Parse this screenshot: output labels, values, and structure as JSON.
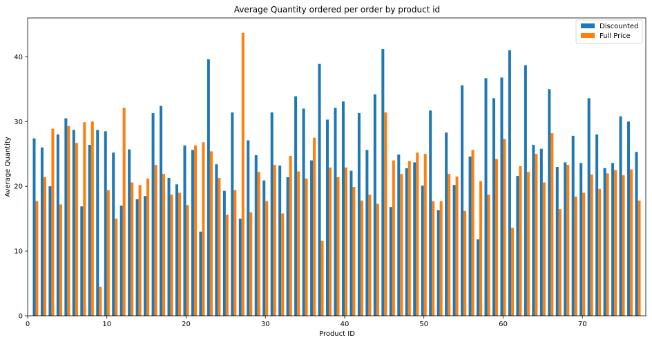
{
  "chart_data": {
    "type": "bar",
    "title": "Average Quantity ordered per order by product id",
    "xlabel": "Product ID",
    "ylabel": "Average Quantity",
    "xlim": [
      0,
      78
    ],
    "ylim": [
      0,
      46
    ],
    "xticks": [
      0,
      10,
      20,
      30,
      40,
      50,
      60,
      70
    ],
    "yticks": [
      0,
      10,
      20,
      30,
      40
    ],
    "grid": false,
    "legend_position": "top-right",
    "x": [
      1,
      2,
      3,
      4,
      5,
      6,
      7,
      8,
      9,
      10,
      11,
      12,
      13,
      14,
      15,
      16,
      17,
      18,
      19,
      20,
      21,
      22,
      23,
      24,
      25,
      26,
      27,
      28,
      29,
      30,
      31,
      32,
      33,
      34,
      35,
      36,
      37,
      38,
      39,
      40,
      41,
      42,
      43,
      44,
      45,
      46,
      47,
      48,
      49,
      50,
      51,
      52,
      53,
      54,
      55,
      56,
      57,
      58,
      59,
      60,
      61,
      62,
      63,
      64,
      65,
      66,
      67,
      68,
      69,
      70,
      71,
      72,
      73,
      74,
      75,
      76,
      77
    ],
    "series": [
      {
        "name": "Discounted",
        "color": "#1f77b4",
        "values": [
          27.4,
          26.0,
          20.0,
          28.0,
          30.5,
          28.7,
          16.9,
          26.4,
          28.7,
          28.5,
          25.2,
          17.0,
          25.7,
          18.0,
          18.5,
          31.3,
          32.4,
          21.3,
          20.3,
          26.3,
          25.6,
          13.0,
          39.6,
          23.4,
          19.3,
          31.4,
          15.0,
          27.1,
          24.8,
          20.9,
          31.4,
          23.2,
          21.4,
          33.9,
          32.0,
          24.0,
          38.9,
          30.3,
          32.1,
          33.1,
          22.4,
          31.3,
          25.6,
          34.2,
          41.2,
          16.8,
          24.9,
          22.8,
          23.7,
          20.1,
          31.7,
          16.3,
          28.3,
          20.2,
          35.6,
          24.6,
          11.8,
          36.7,
          33.6,
          36.8,
          41.0,
          21.6,
          38.7,
          26.4,
          25.8,
          35.0,
          23.0,
          23.7,
          27.8,
          23.6,
          33.6,
          28.0,
          22.8,
          23.6,
          30.8,
          30.0,
          25.3
        ]
      },
      {
        "name": "Full Price",
        "color": "#ff7f0e",
        "values": [
          17.7,
          21.4,
          28.9,
          17.2,
          29.3,
          26.7,
          29.9,
          30.0,
          4.5,
          19.4,
          15.0,
          32.1,
          20.6,
          20.2,
          21.2,
          23.3,
          21.9,
          18.7,
          19.0,
          17.1,
          26.3,
          26.8,
          25.4,
          21.3,
          15.6,
          19.4,
          43.7,
          16.0,
          22.2,
          17.7,
          23.3,
          15.8,
          24.7,
          22.3,
          21.2,
          27.5,
          11.6,
          22.9,
          21.4,
          22.9,
          19.9,
          17.8,
          18.7,
          17.3,
          31.4,
          24.0,
          21.9,
          23.9,
          25.2,
          25.0,
          17.7,
          17.7,
          21.9,
          21.5,
          16.2,
          25.6,
          20.8,
          18.7,
          24.2,
          27.3,
          13.6,
          23.1,
          22.2,
          25.0,
          20.6,
          28.2,
          16.5,
          23.3,
          18.4,
          19.0,
          21.8,
          19.6,
          22.0,
          22.5,
          21.7,
          22.6,
          17.8
        ]
      }
    ]
  }
}
